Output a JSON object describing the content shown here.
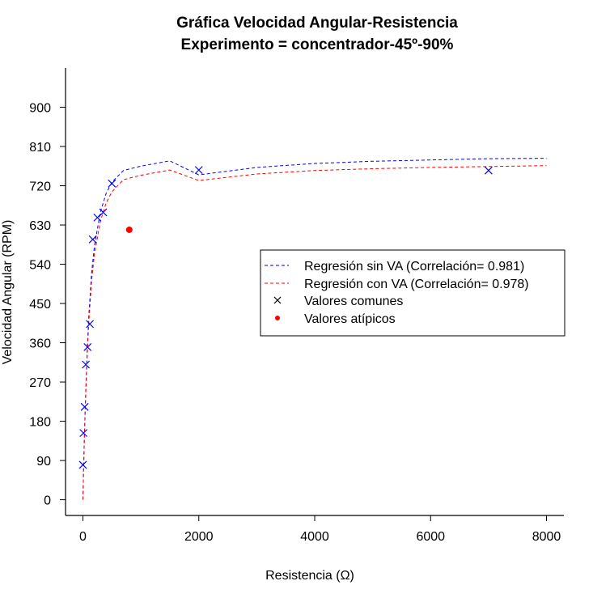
{
  "chart_data": {
    "type": "scatter",
    "title": "Gráfica Velocidad Angular-Resistencia",
    "subtitle": "Experimento = concentrador-45º-90%",
    "xlabel": "Resistencia (Ω)",
    "ylabel": "Velocidad Angular (RPM)",
    "xlim": [
      -300,
      8300
    ],
    "ylim": [
      -36,
      990
    ],
    "x_ticks": [
      0,
      2000,
      4000,
      6000,
      8000
    ],
    "y_ticks": [
      0,
      90,
      180,
      270,
      360,
      450,
      540,
      630,
      720,
      810,
      900
    ],
    "grid": false,
    "legend_position": "center-right",
    "series": [
      {
        "name": "Regresión sin VA (Correlación= 0.981)",
        "kind": "line",
        "style": "dashed",
        "color": "#0000ff",
        "x": [
          0,
          10,
          20,
          30,
          50,
          75,
          100,
          150,
          200,
          300,
          400,
          500,
          700,
          1000,
          1500,
          2000,
          3000,
          4000,
          5000,
          6000,
          7000,
          8000
        ],
        "y": [
          0,
          60,
          115,
          166,
          255,
          348,
          420,
          520,
          583,
          659,
          702,
          728,
          755,
          765,
          777,
          745,
          762,
          771,
          776,
          779,
          782,
          783
        ]
      },
      {
        "name": "Regresión con VA (Correlación= 0.978)",
        "kind": "line",
        "style": "dashed",
        "color": "#ff0000",
        "x": [
          0,
          10,
          20,
          30,
          50,
          75,
          100,
          150,
          200,
          300,
          400,
          500,
          700,
          1000,
          1500,
          2000,
          3000,
          4000,
          5000,
          6000,
          7000,
          8000
        ],
        "y": [
          0,
          58,
          111,
          160,
          246,
          335,
          405,
          502,
          564,
          638,
          680,
          706,
          734,
          744,
          756,
          732,
          747,
          755,
          759,
          762,
          764,
          766
        ]
      },
      {
        "name": "Valores comunes",
        "kind": "points",
        "marker": "x",
        "color": "#0000ff",
        "x": [
          0,
          10,
          30,
          50,
          80,
          120,
          170,
          250,
          350,
          500,
          2000,
          7000
        ],
        "y": [
          80,
          153,
          213,
          310,
          350,
          403,
          597,
          647,
          659,
          725,
          756,
          755
        ]
      },
      {
        "name": "Valores atípicos",
        "kind": "points",
        "marker": "dot",
        "color": "#ff0000",
        "x": [
          800
        ],
        "y": [
          619
        ]
      }
    ]
  }
}
